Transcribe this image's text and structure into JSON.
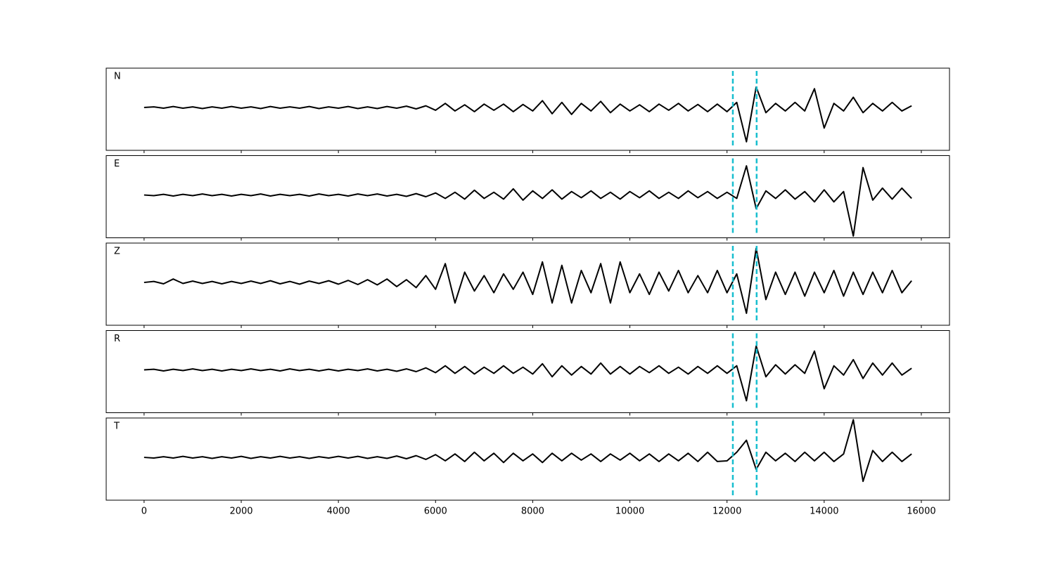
{
  "chart_data": {
    "type": "line",
    "x": [
      0,
      200,
      400,
      600,
      800,
      1000,
      1200,
      1400,
      1600,
      1800,
      2000,
      2200,
      2400,
      2600,
      2800,
      3000,
      3200,
      3400,
      3600,
      3800,
      4000,
      4200,
      4400,
      4600,
      4800,
      5000,
      5200,
      5400,
      5600,
      5800,
      6000,
      6200,
      6400,
      6600,
      6800,
      7000,
      7200,
      7400,
      7600,
      7800,
      8000,
      8200,
      8400,
      8600,
      8800,
      9000,
      9200,
      9400,
      9600,
      9800,
      10000,
      10200,
      10400,
      10600,
      10800,
      11000,
      11200,
      11400,
      11600,
      11800,
      12000,
      12200,
      12400,
      12600,
      12800,
      13000,
      13200,
      13400,
      13600,
      13800,
      14000,
      14200,
      14400,
      14600,
      14800,
      15000,
      15200,
      15400,
      15600,
      15800
    ],
    "series": [
      {
        "name": "N",
        "color": "#000000",
        "values": [
          0,
          0.02,
          -0.02,
          0.03,
          -0.02,
          0.02,
          -0.03,
          0.02,
          -0.02,
          0.03,
          -0.02,
          0.02,
          -0.03,
          0.03,
          -0.02,
          0.02,
          -0.02,
          0.03,
          -0.03,
          0.02,
          -0.02,
          0.03,
          -0.03,
          0.02,
          -0.03,
          0.03,
          -0.02,
          0.04,
          -0.04,
          0.05,
          -0.08,
          0.12,
          -0.1,
          0.08,
          -0.12,
          0.1,
          -0.08,
          0.1,
          -0.12,
          0.09,
          -0.1,
          0.2,
          -0.18,
          0.15,
          -0.2,
          0.12,
          -0.1,
          0.18,
          -0.15,
          0.1,
          -0.1,
          0.08,
          -0.12,
          0.1,
          -0.08,
          0.12,
          -0.1,
          0.09,
          -0.12,
          0.1,
          -0.12,
          0.15,
          -1.0,
          0.6,
          -0.15,
          0.12,
          -0.1,
          0.15,
          -0.1,
          0.55,
          -0.6,
          0.12,
          -0.1,
          0.3,
          -0.15,
          0.12,
          -0.1,
          0.15,
          -0.1,
          0.05
        ]
      },
      {
        "name": "E",
        "color": "#000000",
        "values": [
          0,
          -0.02,
          0.02,
          -0.03,
          0.02,
          -0.02,
          0.03,
          -0.02,
          0.02,
          -0.03,
          0.02,
          -0.02,
          0.03,
          -0.03,
          0.02,
          -0.02,
          0.02,
          -0.03,
          0.03,
          -0.02,
          0.02,
          -0.03,
          0.03,
          -0.02,
          0.03,
          -0.03,
          0.02,
          -0.04,
          0.04,
          -0.05,
          0.06,
          -0.1,
          0.08,
          -0.12,
          0.14,
          -0.1,
          0.08,
          -0.12,
          0.18,
          -0.15,
          0.12,
          -0.1,
          0.15,
          -0.12,
          0.1,
          -0.08,
          0.12,
          -0.1,
          0.08,
          -0.12,
          0.1,
          -0.08,
          0.12,
          -0.1,
          0.08,
          -0.1,
          0.12,
          -0.08,
          0.1,
          -0.1,
          0.08,
          -0.1,
          0.85,
          -0.4,
          0.12,
          -0.1,
          0.15,
          -0.12,
          0.1,
          -0.2,
          0.15,
          -0.2,
          0.1,
          -1.2,
          0.8,
          -0.15,
          0.2,
          -0.12,
          0.2,
          -0.1
        ]
      },
      {
        "name": "Z",
        "color": "#000000",
        "values": [
          0,
          0.03,
          -0.04,
          0.1,
          -0.03,
          0.04,
          -0.03,
          0.03,
          -0.04,
          0.03,
          -0.03,
          0.04,
          -0.03,
          0.05,
          -0.04,
          0.03,
          -0.05,
          0.04,
          -0.03,
          0.05,
          -0.05,
          0.06,
          -0.06,
          0.08,
          -0.07,
          0.1,
          -0.12,
          0.08,
          -0.15,
          0.2,
          -0.2,
          0.55,
          -0.6,
          0.3,
          -0.25,
          0.2,
          -0.3,
          0.25,
          -0.2,
          0.3,
          -0.35,
          0.6,
          -0.6,
          0.5,
          -0.6,
          0.35,
          -0.3,
          0.55,
          -0.6,
          0.6,
          -0.3,
          0.25,
          -0.35,
          0.3,
          -0.25,
          0.35,
          -0.3,
          0.2,
          -0.3,
          0.35,
          -0.3,
          0.25,
          -0.9,
          1.0,
          -0.5,
          0.3,
          -0.35,
          0.3,
          -0.4,
          0.3,
          -0.3,
          0.35,
          -0.4,
          0.3,
          -0.35,
          0.3,
          -0.3,
          0.35,
          -0.3,
          0.05
        ]
      },
      {
        "name": "R",
        "color": "#000000",
        "values": [
          0,
          0.02,
          -0.03,
          0.02,
          -0.02,
          0.03,
          -0.02,
          0.02,
          -0.03,
          0.02,
          -0.02,
          0.03,
          -0.02,
          0.02,
          -0.03,
          0.03,
          -0.02,
          0.02,
          -0.03,
          0.02,
          -0.03,
          0.02,
          -0.02,
          0.03,
          -0.03,
          0.02,
          -0.04,
          0.03,
          -0.05,
          0.06,
          -0.08,
          0.12,
          -0.1,
          0.1,
          -0.12,
          0.08,
          -0.1,
          0.12,
          -0.1,
          0.08,
          -0.12,
          0.18,
          -0.2,
          0.12,
          -0.15,
          0.1,
          -0.12,
          0.2,
          -0.12,
          0.1,
          -0.12,
          0.1,
          -0.08,
          0.12,
          -0.1,
          0.08,
          -0.12,
          0.1,
          -0.1,
          0.12,
          -0.1,
          0.12,
          -0.9,
          0.7,
          -0.2,
          0.15,
          -0.12,
          0.15,
          -0.1,
          0.55,
          -0.55,
          0.12,
          -0.15,
          0.3,
          -0.25,
          0.2,
          -0.15,
          0.2,
          -0.15,
          0.05
        ]
      },
      {
        "name": "T",
        "color": "#000000",
        "values": [
          0,
          -0.02,
          0.02,
          -0.02,
          0.03,
          -0.02,
          0.02,
          -0.03,
          0.02,
          -0.02,
          0.03,
          -0.03,
          0.02,
          -0.02,
          0.03,
          -0.02,
          0.02,
          -0.03,
          0.02,
          -0.02,
          0.03,
          -0.02,
          0.03,
          -0.03,
          0.02,
          -0.03,
          0.04,
          -0.04,
          0.05,
          -0.06,
          0.08,
          -0.1,
          0.1,
          -0.12,
          0.15,
          -0.1,
          0.12,
          -0.15,
          0.12,
          -0.1,
          0.1,
          -0.15,
          0.12,
          -0.1,
          0.12,
          -0.08,
          0.1,
          -0.12,
          0.1,
          -0.08,
          0.12,
          -0.1,
          0.1,
          -0.12,
          0.1,
          -0.1,
          0.12,
          -0.12,
          0.15,
          -0.12,
          -0.1,
          0.15,
          0.5,
          -0.35,
          0.15,
          -0.1,
          0.12,
          -0.12,
          0.15,
          -0.1,
          0.15,
          -0.12,
          0.1,
          1.1,
          -0.7,
          0.2,
          -0.12,
          0.15,
          -0.12,
          0.1
        ]
      }
    ],
    "markers": {
      "values": [
        12120,
        12610
      ],
      "color": "#17becf"
    },
    "xlim": [
      -780,
      16580
    ],
    "xticks": [
      0,
      2000,
      4000,
      6000,
      8000,
      10000,
      12000,
      14000,
      16000
    ],
    "ylim": [
      -1.25,
      1.15
    ]
  }
}
